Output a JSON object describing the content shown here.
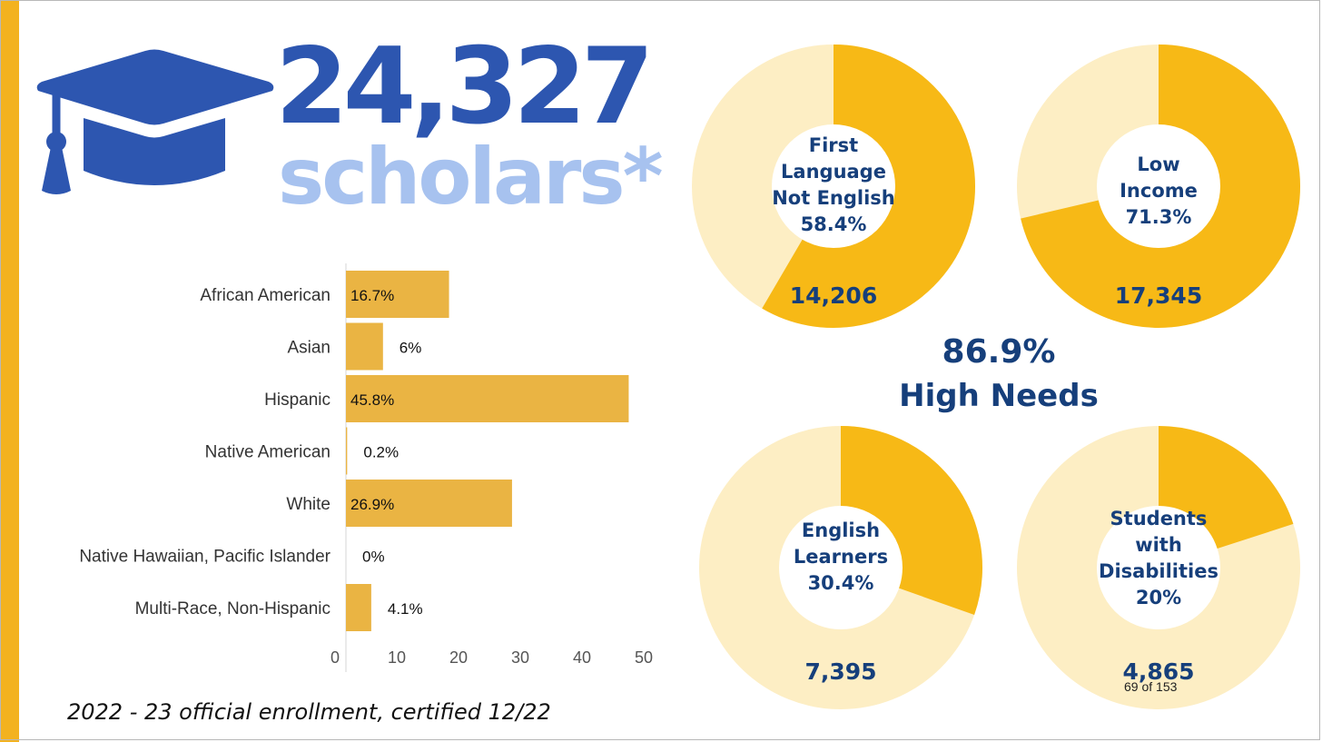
{
  "header": {
    "total": "24,327",
    "label": "scholars*"
  },
  "colors": {
    "accent": "#f3b21f",
    "bar_fill": "#eab443",
    "donut_fill": "#f7b916",
    "donut_track": "#fdeec4",
    "blue_dark": "#163f7b",
    "blue_brand": "#2d56b0",
    "blue_light": "#a7c2ef"
  },
  "icons": {
    "cap": "graduation-cap-icon"
  },
  "chart_data": [
    {
      "type": "bar",
      "orientation": "horizontal",
      "title": "",
      "xlabel": "",
      "ylabel": "",
      "categories": [
        "African American",
        "Asian",
        "Hispanic",
        "Native American",
        "White",
        "Native Hawaiian, Pacific Islander",
        "Multi-Race, Non-Hispanic"
      ],
      "values": [
        16.7,
        6,
        45.8,
        0.2,
        26.9,
        0,
        4.1
      ],
      "value_labels": [
        "16.7%",
        "6%",
        "45.8%",
        "0.2%",
        "26.9%",
        "0%",
        "4.1%"
      ],
      "xlim": [
        0,
        50
      ],
      "x_ticks": [
        "0",
        "10",
        "20",
        "30",
        "40",
        "50"
      ],
      "grid": false,
      "legend": "none"
    },
    {
      "type": "pie",
      "style": "donut-set",
      "items": [
        {
          "lines": [
            "First",
            "Language",
            "Not English"
          ],
          "percent_label": "58.4%",
          "value": 58.4,
          "count": "14,206"
        },
        {
          "lines": [
            "Low",
            "Income"
          ],
          "percent_label": "71.3%",
          "value": 71.3,
          "count": "17,345"
        },
        {
          "lines": [
            "English",
            "Learners"
          ],
          "percent_label": "30.4%",
          "value": 30.4,
          "count": "7,395"
        },
        {
          "lines": [
            "Students",
            "with",
            "Disabilities"
          ],
          "percent_label": "20%",
          "value": 20,
          "count": "4,865"
        }
      ]
    }
  ],
  "high_needs": {
    "percent": "86.9%",
    "label": "High Needs"
  },
  "footnote": "2022 - 23 official enrollment, certified 12/22",
  "page_indicator": "69 of 153"
}
